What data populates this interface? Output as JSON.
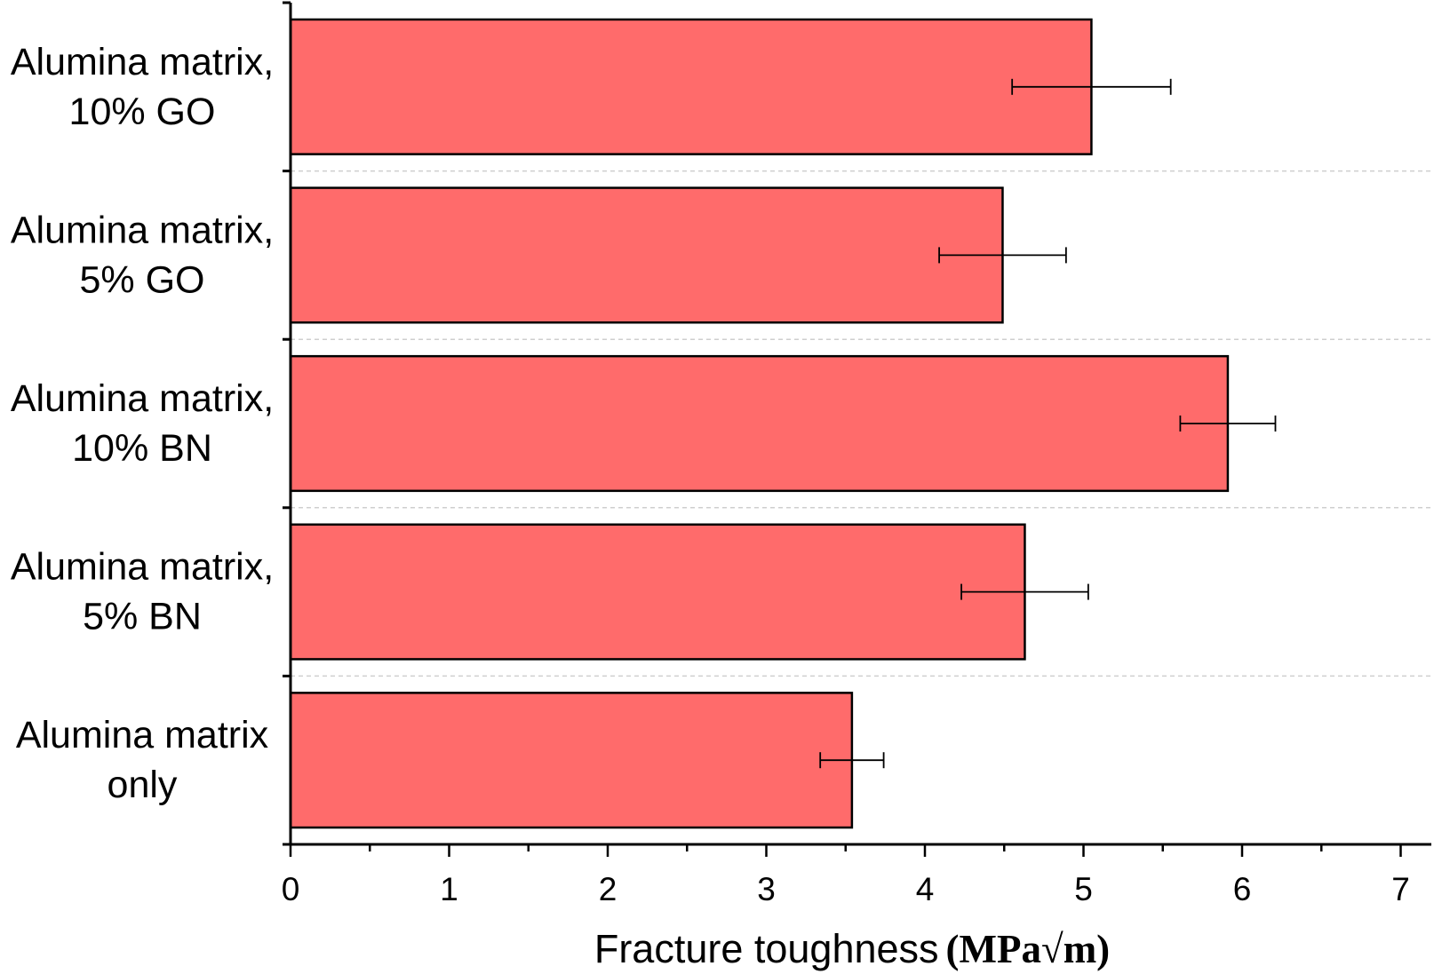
{
  "chart_data": {
    "type": "bar",
    "orientation": "horizontal",
    "categories": [
      [
        "Alumina matrix,",
        "10% GO"
      ],
      [
        "Alumina matrix,",
        "5% GO"
      ],
      [
        "Alumina matrix,",
        "10% BN"
      ],
      [
        "Alumina matrix,",
        "5% BN"
      ],
      [
        "Alumina matrix",
        "only"
      ]
    ],
    "values": [
      5.05,
      4.49,
      5.91,
      4.63,
      3.54
    ],
    "error": [
      0.5,
      0.4,
      0.3,
      0.4,
      0.2
    ],
    "xlabel": "Fracture toughness",
    "xlabel_unit": "(MPa√m)",
    "xlim": [
      0,
      7.2
    ],
    "xticks": [
      "0",
      "1",
      "2",
      "3",
      "4",
      "5",
      "6",
      "7"
    ],
    "grid": "horizontal dashed between categories",
    "bar_color": "#ff6b6b",
    "edge_color": "#000000"
  }
}
